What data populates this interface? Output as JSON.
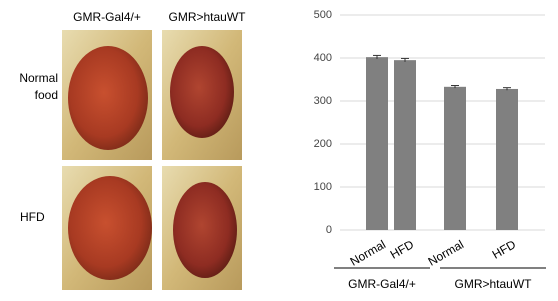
{
  "image_panel": {
    "column_labels": [
      "GMR-Gal4/+",
      "GMR>htauWT"
    ],
    "row_labels": [
      "Normal food",
      "HFD"
    ]
  },
  "chart_data": {
    "type": "bar",
    "categories": [
      "Normal",
      "HFD",
      "Normal",
      "HFD"
    ],
    "groups": [
      "GMR-Gal4/+",
      "GMR>htauWT"
    ],
    "values": [
      402,
      395,
      333,
      328
    ],
    "errors": [
      4,
      4,
      3,
      3
    ],
    "color": "#808080",
    "ylim": [
      0,
      500
    ],
    "yticks": [
      0,
      100,
      200,
      300,
      400,
      500
    ],
    "grid": true
  }
}
